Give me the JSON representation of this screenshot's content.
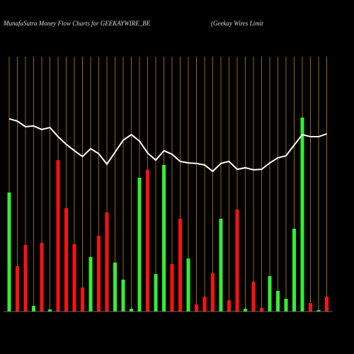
{
  "chart_data": {
    "type": "bar",
    "title": "MunafaSutra  Money Flow  Charts for GEEKAYWIRE_BE",
    "subtitle": "(Geekay Wires Limit",
    "categories": [
      null,
      null,
      null,
      null,
      null,
      null,
      null,
      null,
      null,
      null,
      null,
      null,
      null,
      null,
      null,
      null,
      null,
      null,
      null,
      null,
      null,
      null,
      null,
      null,
      null,
      null,
      null,
      null,
      null,
      null,
      null,
      null,
      null,
      null,
      null,
      null,
      null,
      null,
      null,
      null
    ],
    "values": [
      46.7,
      17.8,
      26.1,
      2.2,
      26.9,
      0.8,
      59.4,
      40.6,
      26.4,
      9.4,
      21.4,
      29.7,
      38.9,
      19.2,
      12.5,
      1.1,
      52.5,
      55.6,
      14.7,
      57.5,
      18.6,
      36.4,
      20.8,
      2.8,
      5.8,
      15,
      36.4,
      4.4,
      40,
      1.1,
      11.7,
      1.4,
      13.9,
      8.1,
      5,
      32.5,
      76.1,
      3.3,
      0.6,
      5.8
    ],
    "colors": [
      "#33ee33",
      "#ff1111",
      "#ff1111",
      "#33ee33",
      "#ff1111",
      "#33ee33",
      "#ff1111",
      "#ff1111",
      "#ff1111",
      "#ff1111",
      "#33ee33",
      "#ff1111",
      "#ff1111",
      "#33ee33",
      "#33ee33",
      "#33ee33",
      "#33ee33",
      "#ff1111",
      "#33ee33",
      "#33ee33",
      "#ff1111",
      "#ff1111",
      "#33ee33",
      "#ff1111",
      "#ff1111",
      "#ff1111",
      "#33ee33",
      "#ff1111",
      "#ff1111",
      "#33ee33",
      "#ff1111",
      "#ff1111",
      "#33ee33",
      "#33ee33",
      "#33ee33",
      "#33ee33",
      "#33ee33",
      "#ff1111",
      "#33ee33",
      "#ff1111"
    ],
    "line": {
      "color": "#ffffff",
      "axis": "y2",
      "values": [
        75.6,
        74.7,
        72.5,
        72.8,
        71.4,
        72.2,
        68.6,
        65.6,
        63.1,
        60.8,
        63.9,
        61.9,
        57.8,
        62.5,
        67.2,
        69.4,
        66.9,
        62.2,
        59.4,
        63.1,
        61.7,
        58.9,
        58.3,
        58.1,
        57.5,
        55,
        58.1,
        58.9,
        55.8,
        56.4,
        55.6,
        55.8,
        58.3,
        60.3,
        61.1,
        65.3,
        69.4,
        68.6,
        68.6,
        69.7
      ]
    },
    "ylim": [
      0,
      100
    ],
    "y2lim": [
      0,
      100
    ],
    "grid": true,
    "grid_color": "#b8860b"
  }
}
